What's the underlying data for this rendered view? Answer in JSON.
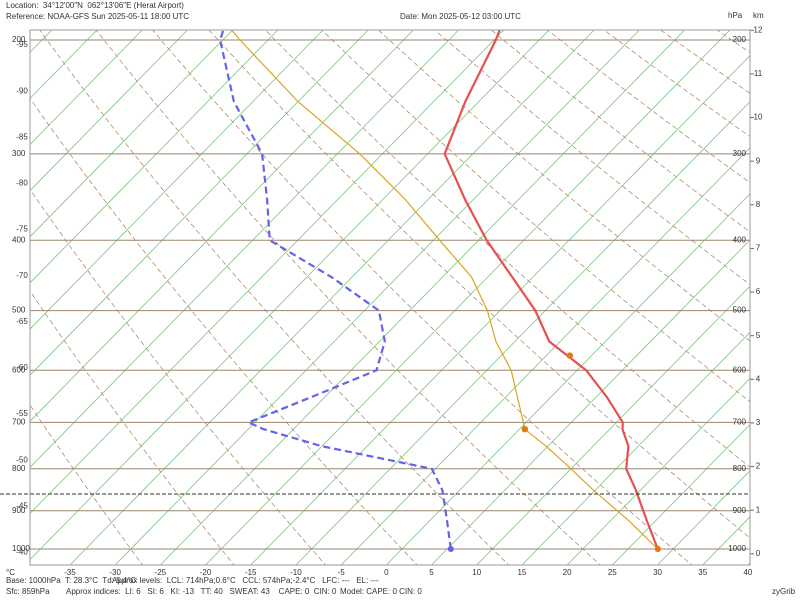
{
  "chart_data": {
    "type": "skewt",
    "header": {
      "location": "Location:  34°12'00\"N  062°13'06\"E (Herat Airport)",
      "reference": "Reference: NOAA-GFS Sun 2025-05-11 18:00 UTC",
      "date": "Date: Mon 2025-05-12 03:00 UTC"
    },
    "pressure_unit": "hPa",
    "height_unit": "km",
    "temperature_unit": "°C",
    "pressure": [
      1000,
      925,
      850,
      800,
      750,
      714,
      700,
      650,
      600,
      550,
      500,
      450,
      400,
      350,
      300,
      250,
      200,
      190
    ],
    "series": [
      {
        "color": "#e85050",
        "dashed": false,
        "values": [
          28.3,
          24.0,
          19.5,
          16.1,
          13.9,
          11.4,
          10.7,
          6.2,
          1.0,
          -6.2,
          -11.1,
          -17.3,
          -24.1,
          -30.9,
          -38.1,
          -41.5,
          -44.8,
          -45.7
        ]
      },
      {
        "color": "#6464e6",
        "dashed": true,
        "values": [
          5.4,
          1.9,
          -1.9,
          -5.4,
          -20.0,
          -28.3,
          -30.7,
          -26.5,
          -22.2,
          -24.4,
          -28.4,
          -37.3,
          -48.1,
          -52.8,
          -58.3,
          -67.1,
          -75.3,
          -76.3
        ]
      },
      {
        "color": "#d9a520",
        "dashed": false,
        "values": [
          28.3,
          22.0,
          14.8,
          10.0,
          4.8,
          0.6,
          -0.3,
          -3.7,
          -7.3,
          -12.1,
          -16.4,
          -21.8,
          -29.3,
          -37.5,
          -47.5,
          -60.0,
          -73.1,
          -75.9
        ]
      }
    ],
    "markers": [
      {
        "color": "#e07a10",
        "pressure": 714,
        "temp": 0.6
      },
      {
        "color": "#e07a10",
        "pressure": 574,
        "temp": -2.4
      }
    ],
    "station_pressure": 859,
    "xticks": [
      -35,
      -30,
      -25,
      -20,
      -15,
      -10,
      -5,
      0,
      5,
      10,
      15,
      20,
      25,
      30,
      35,
      40
    ],
    "left_isotherm_ticks": [
      -95,
      -90,
      -85,
      -80,
      -75,
      -70,
      -65,
      -60,
      -55,
      -50,
      -45,
      -40
    ],
    "pressure_ticks": [
      1000,
      900,
      800,
      700,
      600,
      500,
      400,
      300,
      200
    ],
    "height_ticks": [
      0,
      1,
      2,
      3,
      4,
      5,
      6,
      7,
      8,
      9,
      10,
      11,
      12
    ],
    "footer": {
      "base": "Base: 1000hPa  T: 28.3°C  Td: 5.4°C",
      "levels": "Approx levels:  LCL: 714hPa;0.6°C   CCL: 574hPa;-2.4°C   LFC: ---   EL: ---",
      "sfc": "Sfc: 859hPa",
      "indices": "Approx indices:  LI: 6   SI: 6   KI: -13   TT: 40   SWEAT: 43    CAPE: 0  CIN: 0",
      "model": "Model: CAPE: 0 CIN: 0",
      "credit": "zyGrib"
    }
  }
}
